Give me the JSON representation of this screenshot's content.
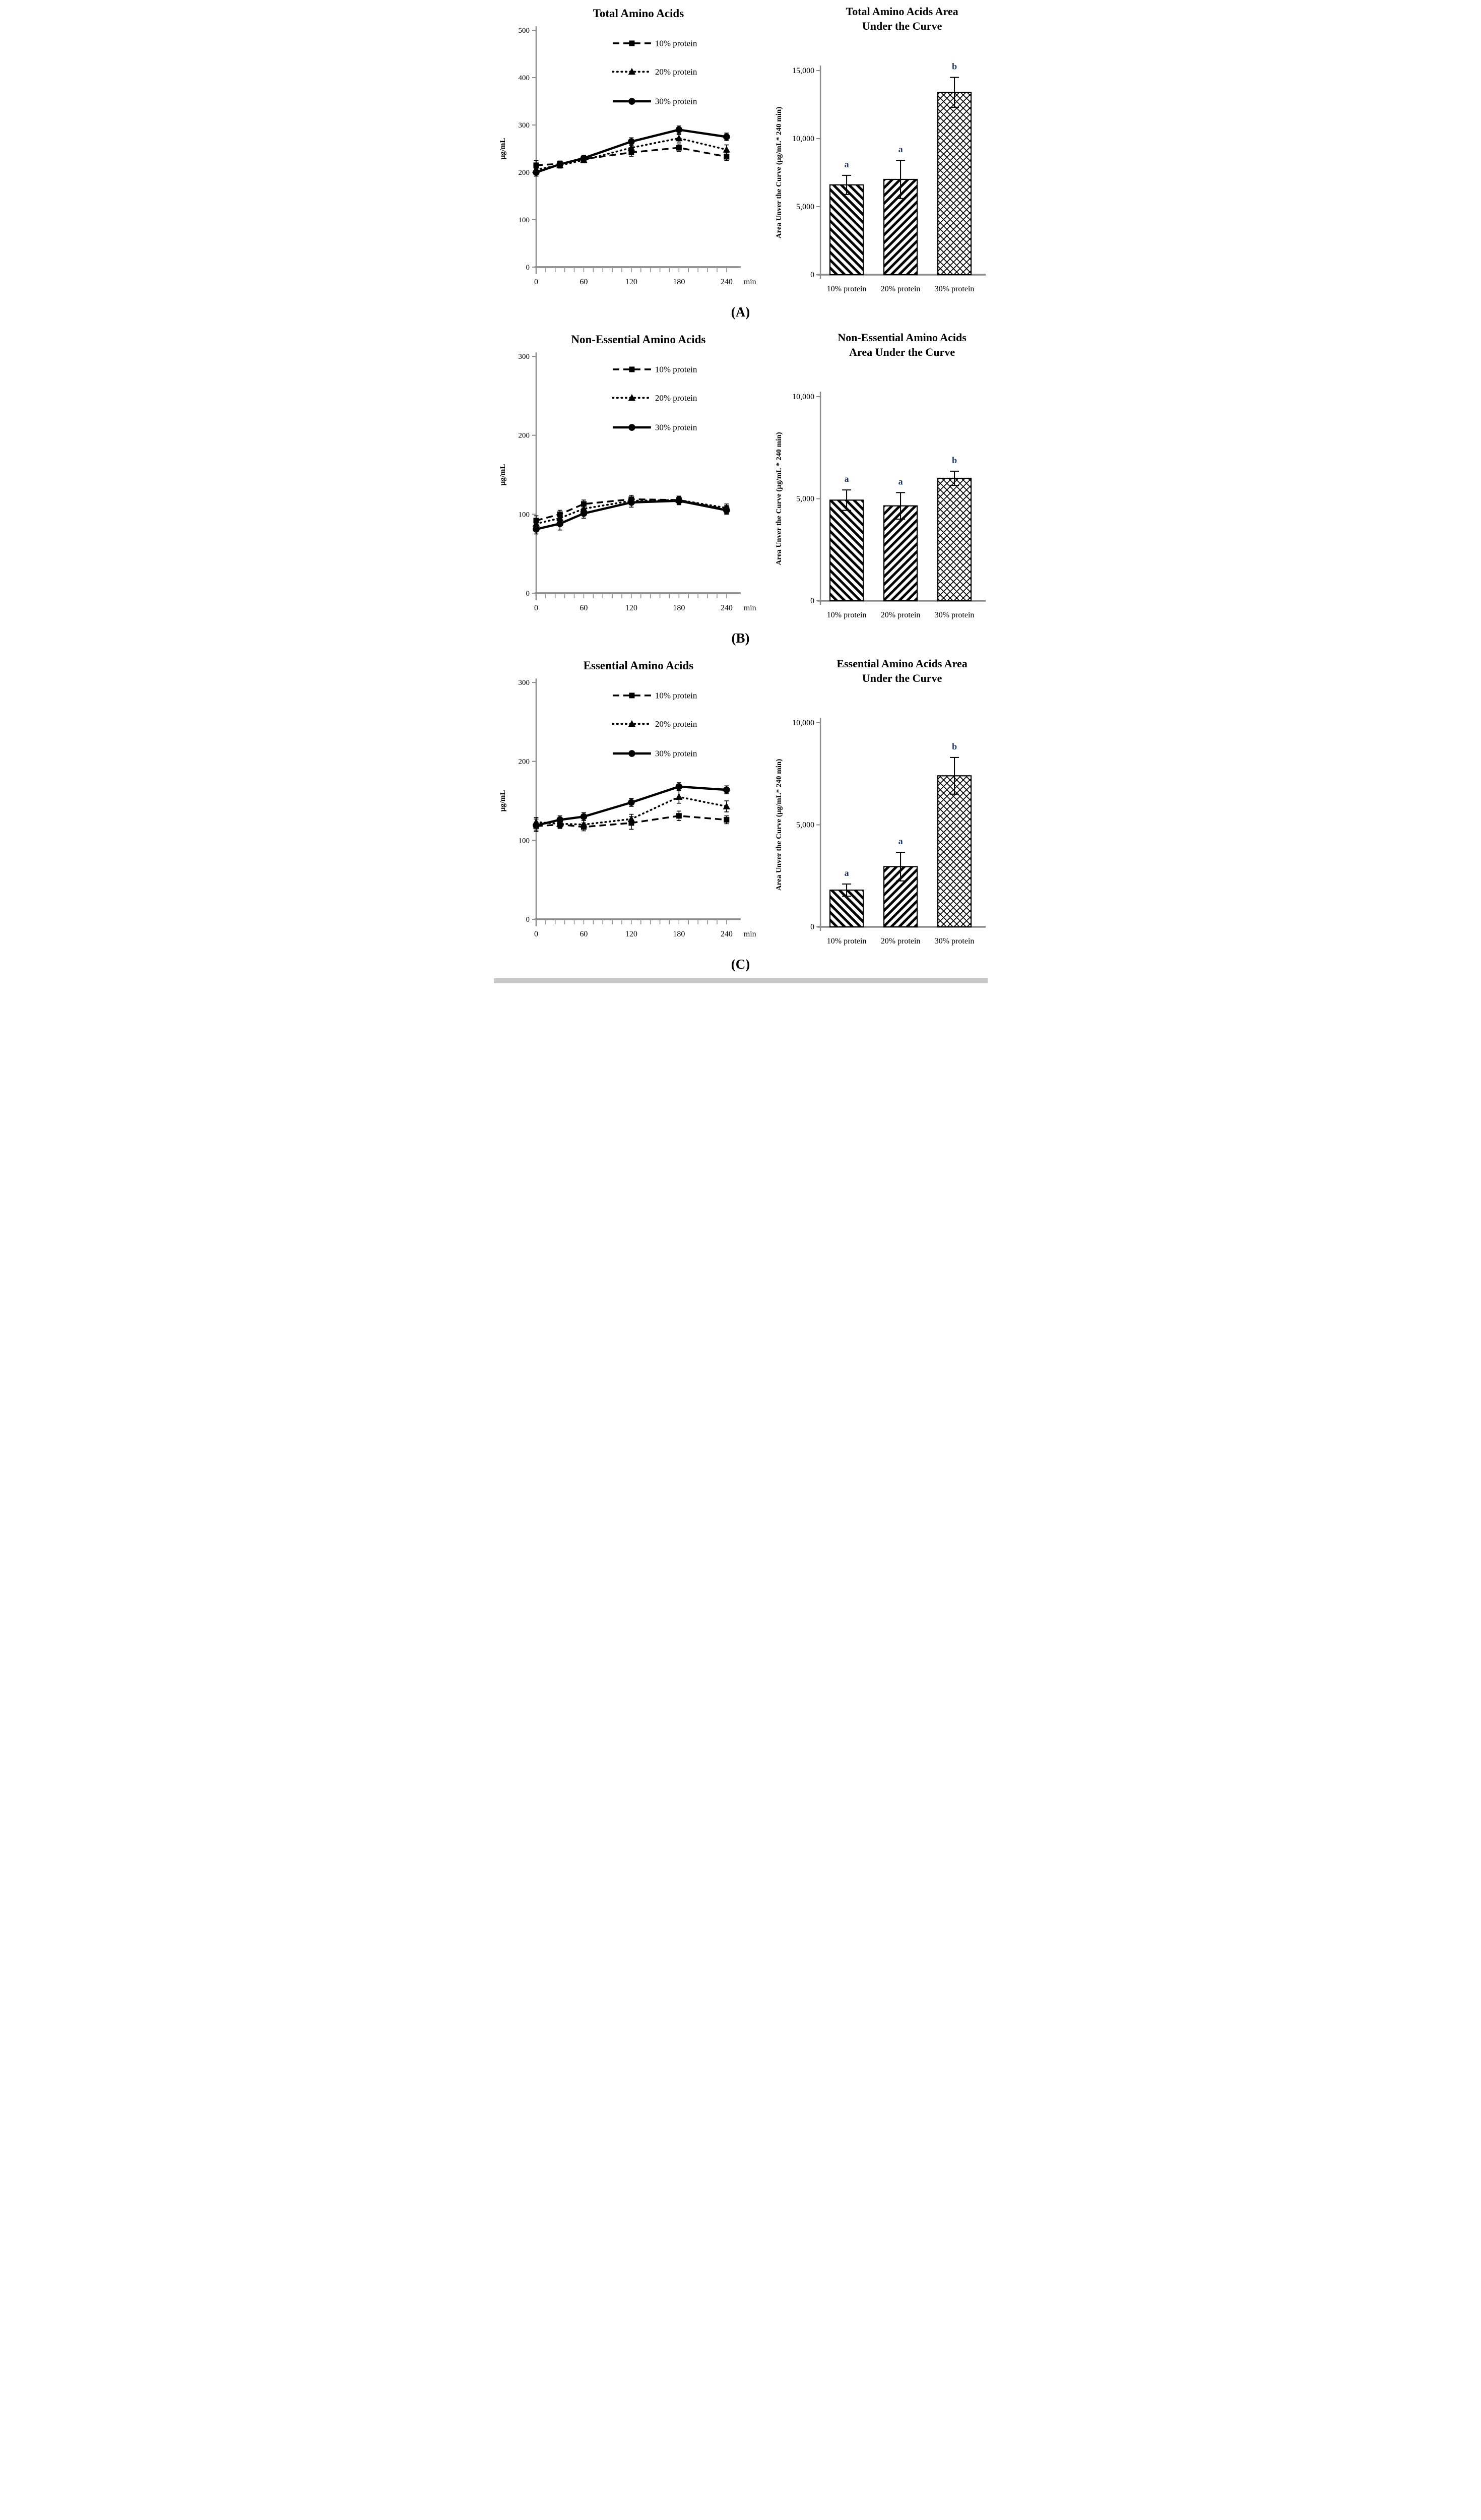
{
  "page": {
    "background": "#ffffff",
    "figure_labels": [
      "(A)",
      "(B)",
      "(C)"
    ],
    "bottom_strip_color": "#c9c9c9",
    "sig_letter_color": "#1f3864",
    "axis_color": "#8c8c8c",
    "ink_color": "#000000"
  },
  "chart_data": [
    {
      "type": "line",
      "panel": "A",
      "title": "Total Amino Acids",
      "ylabel": "µg/mL",
      "x_unit": "min",
      "x": [
        0,
        30,
        60,
        120,
        180,
        240
      ],
      "xticks": [
        0,
        60,
        120,
        180,
        240
      ],
      "x_minor_step": 12,
      "ylim": [
        0,
        500
      ],
      "yticks": [
        0,
        100,
        200,
        300,
        400,
        500
      ],
      "legend_labels": [
        "10% protein",
        "20% protein",
        "30% protein"
      ],
      "series": [
        {
          "name": "10% protein",
          "marker": "square",
          "line": "dashed",
          "values": [
            215,
            218,
            228,
            242,
            252,
            233
          ],
          "errors": [
            10,
            6,
            6,
            8,
            8,
            8
          ]
        },
        {
          "name": "20% protein",
          "marker": "triangle",
          "line": "dotted",
          "values": [
            206,
            215,
            226,
            252,
            272,
            248
          ],
          "errors": [
            8,
            6,
            6,
            8,
            8,
            10
          ]
        },
        {
          "name": "30% protein",
          "marker": "circle",
          "line": "solid",
          "values": [
            200,
            217,
            230,
            265,
            290,
            275
          ],
          "errors": [
            8,
            6,
            6,
            8,
            8,
            8
          ]
        }
      ]
    },
    {
      "type": "bar",
      "panel": "A",
      "title_lines": [
        "Total Amino Acids Area",
        "Under the Curve"
      ],
      "ylabel": "Area Unver the Curve (µg/mL* 240 min)",
      "ylim": [
        0,
        15000
      ],
      "yticks": [
        0,
        5000,
        10000,
        15000
      ],
      "categories": [
        "10% protein",
        "20% protein",
        "30% protein"
      ],
      "values": [
        6600,
        7000,
        13400
      ],
      "errors": [
        700,
        1400,
        1100
      ],
      "sig_letters": [
        "a",
        "a",
        "b"
      ],
      "patterns": [
        "diag-down",
        "diag-up",
        "weave"
      ]
    },
    {
      "type": "line",
      "panel": "B",
      "title": "Non-Essential Amino Acids",
      "ylabel": "µg/mL",
      "x_unit": "min",
      "x": [
        0,
        30,
        60,
        120,
        180,
        240
      ],
      "xticks": [
        0,
        60,
        120,
        180,
        240
      ],
      "x_minor_step": 12,
      "ylim": [
        0,
        300
      ],
      "yticks": [
        0,
        100,
        200,
        300
      ],
      "legend_labels": [
        "10% protein",
        "20% protein",
        "30% protein"
      ],
      "series": [
        {
          "name": "10% protein",
          "marker": "square",
          "line": "dashed",
          "values": [
            92,
            100,
            113,
            119,
            118,
            106
          ],
          "errors": [
            6,
            5,
            5,
            5,
            5,
            5
          ]
        },
        {
          "name": "20% protein",
          "marker": "triangle",
          "line": "dotted",
          "values": [
            88,
            95,
            107,
            117,
            118,
            108
          ],
          "errors": [
            5,
            5,
            5,
            5,
            5,
            5
          ]
        },
        {
          "name": "30% protein",
          "marker": "circle",
          "line": "solid",
          "values": [
            81,
            88,
            101,
            115,
            117,
            105
          ],
          "errors": [
            6,
            8,
            6,
            6,
            5,
            5
          ]
        }
      ]
    },
    {
      "type": "bar",
      "panel": "B",
      "title_lines": [
        "Non-Essential Amino Acids",
        "Area Under the Curve"
      ],
      "ylabel": "Area Unver the Curve (µg/mL * 240 min)",
      "ylim": [
        0,
        10000
      ],
      "yticks": [
        0,
        5000,
        10000
      ],
      "categories": [
        "10% protein",
        "20% protein",
        "30% protein"
      ],
      "values": [
        4930,
        4650,
        6000
      ],
      "errors": [
        500,
        650,
        350
      ],
      "sig_letters": [
        "a",
        "a",
        "b"
      ],
      "patterns": [
        "diag-down",
        "diag-up",
        "weave"
      ]
    },
    {
      "type": "line",
      "panel": "C",
      "title": "Essential Amino Acids",
      "ylabel": "µg/mL",
      "x_unit": "min",
      "x": [
        0,
        30,
        60,
        120,
        180,
        240
      ],
      "xticks": [
        0,
        60,
        120,
        180,
        240
      ],
      "x_minor_step": 12,
      "ylim": [
        0,
        300
      ],
      "yticks": [
        0,
        100,
        200,
        300
      ],
      "legend_labels": [
        "10% protein",
        "20% protein",
        "30% protein"
      ],
      "series": [
        {
          "name": "10% protein",
          "marker": "square",
          "line": "dashed",
          "values": [
            118,
            120,
            117,
            122,
            131,
            126
          ],
          "errors": [
            5,
            5,
            5,
            8,
            6,
            5
          ]
        },
        {
          "name": "20% protein",
          "marker": "triangle",
          "line": "dotted",
          "values": [
            123,
            121,
            120,
            127,
            155,
            143
          ],
          "errors": [
            6,
            5,
            5,
            6,
            8,
            7
          ]
        },
        {
          "name": "30% protein",
          "marker": "circle",
          "line": "solid",
          "values": [
            119,
            126,
            130,
            148,
            168,
            164
          ],
          "errors": [
            8,
            5,
            5,
            5,
            5,
            5
          ]
        }
      ]
    },
    {
      "type": "bar",
      "panel": "C",
      "title_lines": [
        "Essential Amino Acids Area",
        "Under the Curve"
      ],
      "ylabel": "Area Unver the Curve (µg/mL* 240 min)",
      "ylim": [
        0,
        10000
      ],
      "yticks": [
        0,
        5000,
        10000
      ],
      "categories": [
        "10% protein",
        "20% protein",
        "30% protein"
      ],
      "values": [
        1800,
        2950,
        7400
      ],
      "errors": [
        300,
        700,
        900
      ],
      "sig_letters": [
        "a",
        "a",
        "b"
      ],
      "patterns": [
        "diag-down",
        "diag-up",
        "weave"
      ]
    }
  ]
}
